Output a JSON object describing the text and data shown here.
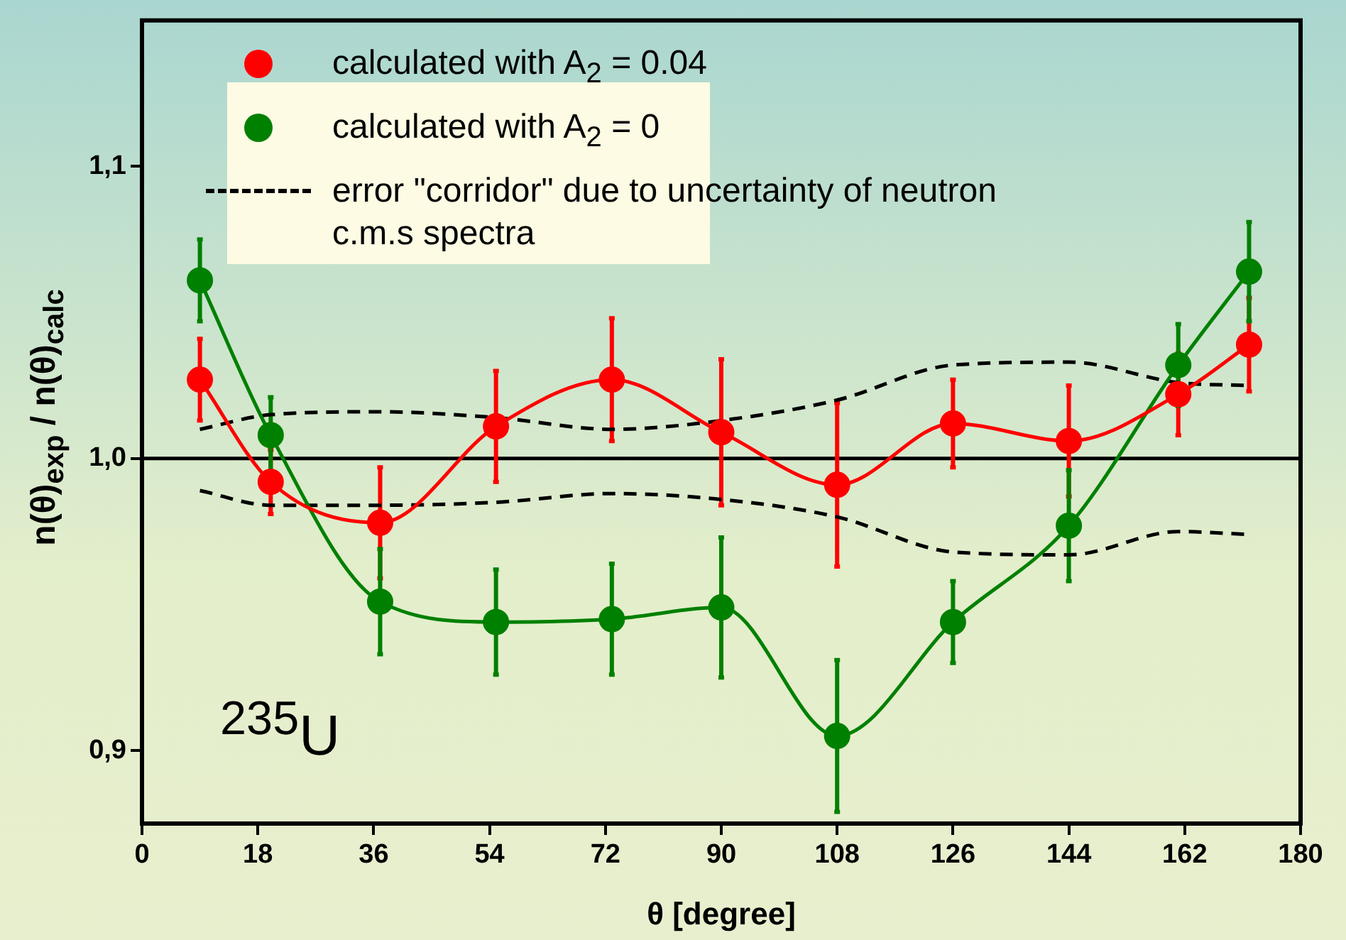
{
  "chart_data": {
    "type": "line",
    "xlabel": "θ [degree]",
    "ylabel": "n(θ)$_{exp}$ / n(θ)$_{calc}$",
    "x": [
      9,
      20,
      37,
      55,
      73,
      90,
      108,
      126,
      144,
      161,
      172
    ],
    "xlim": [
      0,
      180
    ],
    "xticks": [
      0,
      18,
      36,
      54,
      72,
      90,
      108,
      126,
      144,
      162,
      180
    ],
    "ylim": [
      0.875,
      1.15
    ],
    "yticks": [
      {
        "value": 0.9,
        "label": "0,9"
      },
      {
        "value": 1.0,
        "label": "1,0"
      },
      {
        "value": 1.1,
        "label": "1,1"
      }
    ],
    "grid": false,
    "legend": "top left",
    "marker": "circle",
    "annotations": [
      "$^{235}$U"
    ],
    "ref_lines": [
      {
        "axis": "y",
        "value": 1.0,
        "color": "#000000"
      }
    ],
    "series": [
      {
        "name": "calculated with A$_{2}$ = 0.04",
        "color": "#ff0000",
        "values": [
          1.027,
          0.992,
          0.978,
          1.011,
          1.027,
          1.009,
          0.991,
          1.012,
          1.006,
          1.022,
          1.039
        ],
        "errors": [
          0.014,
          0.011,
          0.019,
          0.019,
          0.021,
          0.025,
          0.028,
          0.015,
          0.019,
          0.014,
          0.016
        ]
      },
      {
        "name": "calculated with A$_{2}$ = 0",
        "color": "#008000",
        "values": [
          1.061,
          1.008,
          0.951,
          0.944,
          0.945,
          0.949,
          0.905,
          0.944,
          0.977,
          1.032,
          1.064
        ],
        "errors": [
          0.014,
          0.013,
          0.018,
          0.018,
          0.019,
          0.024,
          0.026,
          0.014,
          0.019,
          0.014,
          0.017
        ]
      },
      {
        "name": "error \"corridor\" due to uncertainty of neutron c.m.s spectra",
        "color": "#000000",
        "line_style": "dashed",
        "marker": "none",
        "values": [
          1.01,
          1.015,
          1.016,
          1.014,
          1.01,
          1.013,
          1.02,
          1.032,
          1.033,
          1.026,
          1.025
        ]
      },
      {
        "color": "#000000",
        "line_style": "dashed",
        "marker": "none",
        "values": [
          0.989,
          0.984,
          0.984,
          0.985,
          0.988,
          0.986,
          0.98,
          0.968,
          0.967,
          0.975,
          0.974
        ]
      }
    ]
  }
}
